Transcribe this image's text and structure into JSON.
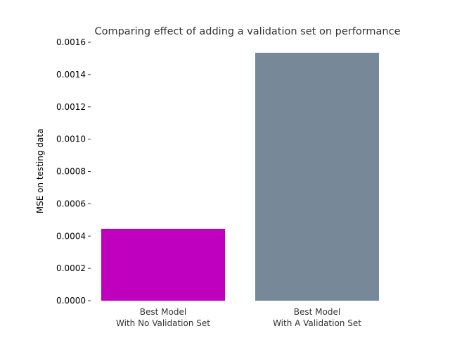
{
  "chart_data": {
    "type": "bar",
    "title": "Comparing effect of adding a validation set on performance",
    "xlabel": "",
    "ylabel": "MSE on testing data",
    "categories": [
      [
        "Best Model",
        "With No Validation Set"
      ],
      [
        "Best Model",
        "With A Validation Set"
      ]
    ],
    "values": [
      0.000445,
      0.001535
    ],
    "colors": [
      "#bf00bf",
      "#778899"
    ],
    "ylim": [
      0,
      0.0016
    ],
    "yticks": [
      0.0,
      0.0002,
      0.0004,
      0.0006,
      0.0008,
      0.001,
      0.0012,
      0.0014,
      0.0016
    ],
    "ytick_labels": [
      "0.0000",
      "0.0002",
      "0.0004",
      "0.0006",
      "0.0008",
      "0.0010",
      "0.0012",
      "0.0014",
      "0.0016"
    ],
    "grid": false,
    "legend": "none"
  }
}
